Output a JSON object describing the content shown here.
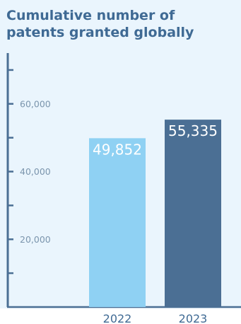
{
  "colors": {
    "background": "#eaf5fd",
    "axis": "#4b6f94",
    "title": "#3f6a94",
    "tick_label": "#7b95ad"
  },
  "chart_data": {
    "type": "bar",
    "title_lines": [
      "Cumulative number of",
      "patents granted globally"
    ],
    "xlabel": "",
    "ylabel": "",
    "categories": [
      "2022",
      "2023"
    ],
    "values": [
      49852,
      55335
    ],
    "value_labels": [
      "49,852",
      "55,335"
    ],
    "bar_colors": [
      "#8fd1f3",
      "#4b6f94"
    ],
    "y_ticks": [
      20000,
      40000,
      60000
    ],
    "y_tick_labels": [
      "20,000",
      "40,000",
      "60,000"
    ],
    "ylim": [
      0,
      75000
    ],
    "grid": false,
    "legend": "none"
  }
}
